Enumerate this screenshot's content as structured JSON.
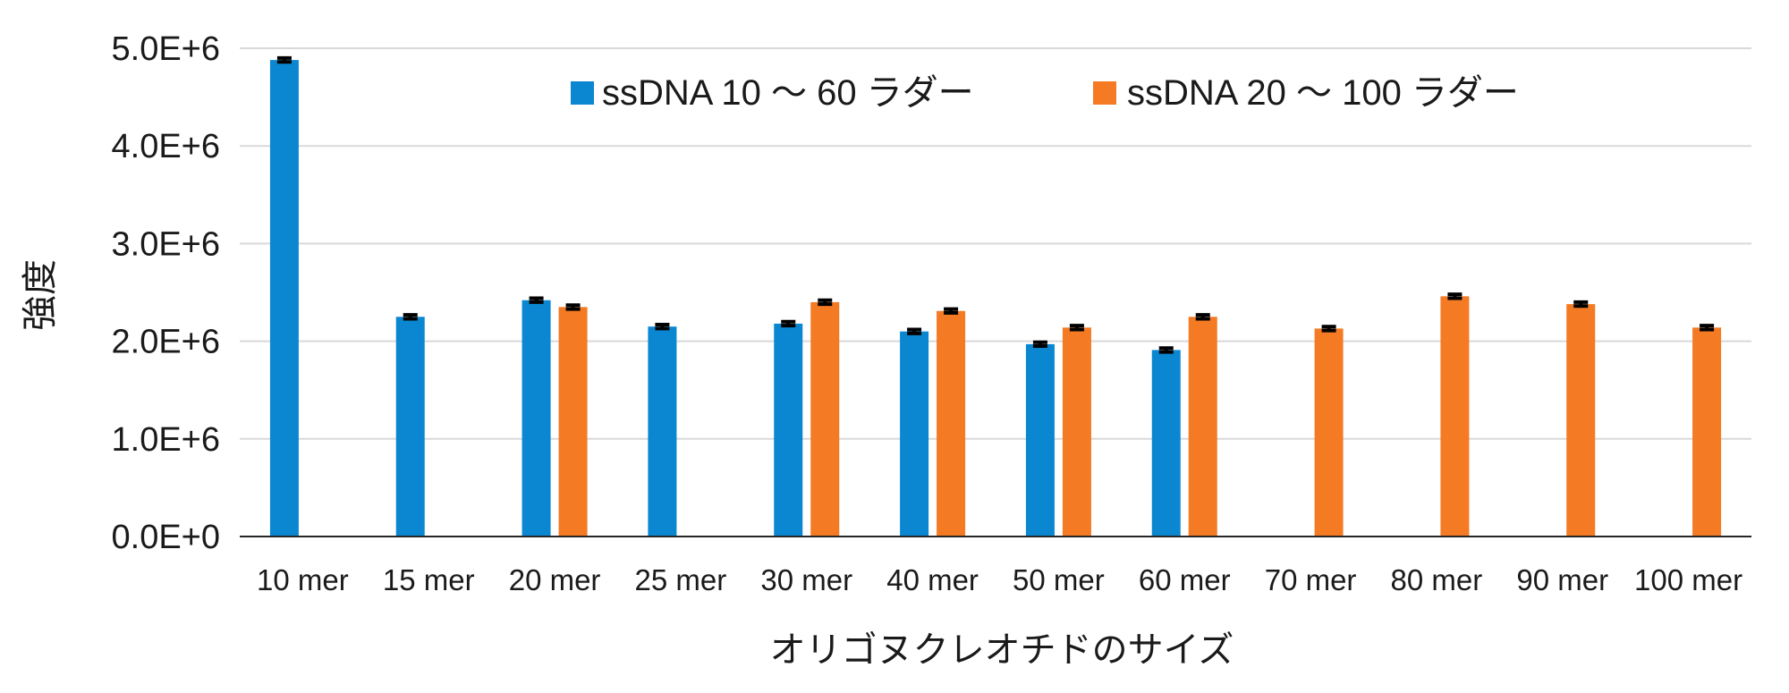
{
  "chart_data": {
    "type": "bar",
    "title": "",
    "xlabel": "オリゴヌクレオチドのサイズ",
    "ylabel": "強度",
    "ylim": [
      0,
      5000000
    ],
    "yticks": [
      0,
      1000000,
      2000000,
      3000000,
      4000000,
      5000000
    ],
    "ytick_labels": [
      "0.0E+0",
      "1.0E+6",
      "2.0E+6",
      "3.0E+6",
      "4.0E+6",
      "5.0E+6"
    ],
    "grid": true,
    "legend_position": "top",
    "categories": [
      "10 mer",
      "15 mer",
      "20 mer",
      "25 mer",
      "30 mer",
      "40 mer",
      "50 mer",
      "60 mer",
      "70 mer",
      "80 mer",
      "90 mer",
      "100 mer"
    ],
    "series": [
      {
        "name": "ssDNA 10 ～ 60 ラダー",
        "color": "#0a87d0",
        "values": [
          4880000,
          2250000,
          2420000,
          2150000,
          2180000,
          2100000,
          1970000,
          1910000,
          null,
          null,
          null,
          null
        ],
        "errors": [
          20000,
          20000,
          20000,
          20000,
          20000,
          20000,
          20000,
          20000,
          null,
          null,
          null,
          null
        ]
      },
      {
        "name": "ssDNA 20 ～ 100 ラダー",
        "color": "#f47a24",
        "values": [
          null,
          null,
          2350000,
          null,
          2400000,
          2310000,
          2140000,
          2250000,
          2130000,
          2460000,
          2380000,
          2140000
        ],
        "errors": [
          null,
          null,
          20000,
          null,
          20000,
          20000,
          20000,
          20000,
          20000,
          20000,
          20000,
          20000
        ]
      }
    ]
  }
}
